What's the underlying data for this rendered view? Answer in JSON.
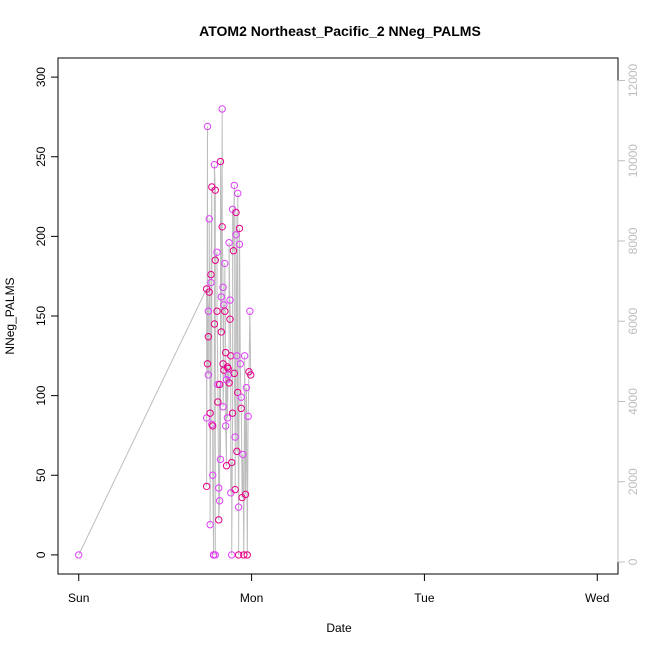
{
  "chart_data": {
    "type": "scatter",
    "title": "ATOM2 Northeast_Pacific_2 NNeg_PALMS",
    "xlabel": "Date",
    "ylabel": "NNeg_PALMS",
    "x_ticks": [
      "Sun",
      "Mon",
      "Tue",
      "Wed"
    ],
    "x_tick_values": [
      0,
      1,
      2,
      3
    ],
    "x_range": [
      -0.12,
      3.12
    ],
    "ylim": [
      -12,
      312
    ],
    "y_ticks": [
      0,
      50,
      100,
      150,
      200,
      250,
      300
    ],
    "y2_ticks": [
      0,
      2000,
      4000,
      6000,
      8000,
      10000,
      12000
    ],
    "y2_range": [
      -300,
      12560
    ],
    "colors": {
      "series_a": "#e040fb",
      "series_b": "#e6008a",
      "line": "#bdbdbd",
      "right_axis": "#bdbdbd"
    },
    "series": [
      {
        "x": [
          0.0,
          0.74,
          0.74,
          0.74,
          0.745,
          0.745,
          0.75,
          0.75,
          0.75,
          0.755,
          0.755,
          0.76,
          0.76,
          0.765,
          0.765,
          0.77,
          0.77,
          0.775,
          0.775,
          0.78,
          0.78,
          0.785,
          0.785,
          0.79,
          0.79,
          0.79,
          0.8,
          0.8,
          0.805,
          0.805,
          0.81,
          0.81,
          0.815,
          0.815,
          0.82,
          0.82,
          0.825,
          0.825,
          0.83,
          0.83,
          0.835,
          0.835,
          0.835,
          0.84,
          0.84,
          0.845,
          0.845,
          0.85,
          0.85,
          0.855,
          0.855,
          0.86,
          0.86,
          0.865,
          0.865,
          0.87,
          0.87,
          0.875,
          0.875,
          0.88,
          0.88,
          0.885,
          0.885,
          0.89,
          0.89,
          0.895,
          0.9,
          0.9,
          0.905,
          0.905,
          0.91,
          0.91,
          0.915,
          0.915,
          0.92,
          0.92,
          0.925,
          0.925,
          0.93,
          0.93,
          0.935,
          0.94,
          0.94,
          0.945,
          0.95,
          0.955,
          0.96,
          0.965,
          0.97,
          0.975,
          0.98,
          0.985,
          0.99,
          0.995
        ],
        "y": [
          0,
          167,
          86,
          43,
          269,
          120,
          113,
          137,
          153,
          165,
          211,
          89,
          19,
          176,
          171,
          231,
          82,
          81,
          50,
          0,
          0,
          145,
          245,
          229,
          0,
          185,
          190,
          153,
          107,
          96,
          42,
          22,
          34,
          107,
          60,
          247,
          162,
          140,
          280,
          206,
          168,
          120,
          93,
          116,
          157,
          153,
          183,
          127,
          81,
          56,
          110,
          118,
          86,
          117,
          113,
          108,
          196,
          148,
          160,
          125,
          39,
          58,
          0,
          89,
          217,
          191,
          232,
          114,
          74,
          41,
          201,
          215,
          125,
          65,
          227,
          102,
          30,
          0,
          195,
          205,
          120,
          92,
          99,
          36,
          63,
          0,
          125,
          38,
          105,
          0,
          87,
          115,
          153,
          113
        ],
        "name": ""
      }
    ]
  }
}
